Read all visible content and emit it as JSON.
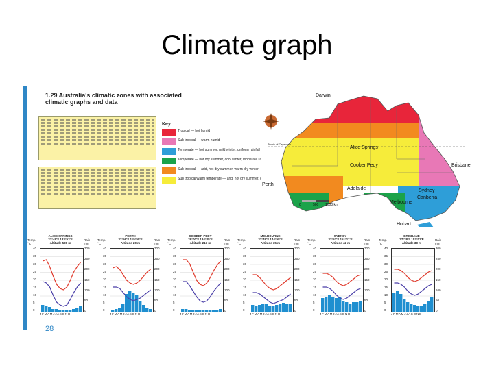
{
  "slide": {
    "title": "Climate graph"
  },
  "figure": {
    "title": "1.29 Australia's climatic zones with associated climatic graphs and data",
    "page_number": "28"
  },
  "key": {
    "title": "Key",
    "items": [
      {
        "label": "Tropical — hot humid",
        "color": "#e8253a"
      },
      {
        "label": "Sub tropical — warm humid",
        "color": "#e878b6"
      },
      {
        "label": "Temperate — hot summer, mild winter; uniform rainfall",
        "color": "#2e9ed8"
      },
      {
        "label": "Temperate — hot dry summer, cool winter, moderate rain",
        "color": "#1ba34a"
      },
      {
        "label": "Sub tropical — arid, hot dry summer, warm dry winter",
        "color": "#f28a1f"
      },
      {
        "label": "Sub tropical/warm temperate — arid, hot dry summer, cool dry winter",
        "color": "#f6ec3a"
      }
    ]
  },
  "map": {
    "labels": {
      "darwin": "Darwin",
      "alice_springs": "Alice Springs",
      "coober_pedy": "Coober Pedy",
      "perth": "Perth",
      "adelaide": "Adelaide",
      "brisbane": "Brisbane",
      "sydney": "Sydney",
      "canberra": "Canberra",
      "melbourne": "Melbourne",
      "hobart": "Hobart",
      "tropic": "Tropic of Capricorn"
    },
    "scale": {
      "zero": "0",
      "mid": "500",
      "end": "1000 km"
    }
  },
  "graphs": [
    {
      "name": "ALICE SPRINGS",
      "coords": "23°48'S 133°53'E",
      "altitude": "Altitude 580 m"
    },
    {
      "name": "PERTH",
      "coords": "31°56'S 115°58'E",
      "altitude": "Altitude 20 m"
    },
    {
      "name": "COOBER PEDY",
      "coords": "29°00'S 134°45'E",
      "altitude": "Altitude 213 m"
    },
    {
      "name": "MELBOURNE",
      "coords": "37°49'S 144°58'E",
      "altitude": "Altitude 35 m"
    },
    {
      "name": "SYDNEY",
      "coords": "33°52'S 151°11'E",
      "altitude": "Altitude 42 m"
    },
    {
      "name": "BRISBANE",
      "coords": "27°28'S 153°02'E",
      "altitude": "Altitude 38 m"
    }
  ],
  "graph_axes": {
    "temp_label": "Temp. °C",
    "rain_label": "Rain mm",
    "temp_ticks": [
      "40",
      "35",
      "30",
      "25",
      "20",
      "15",
      "10",
      "5",
      "0"
    ],
    "rain_ticks": [
      "300",
      "250",
      "200",
      "150",
      "100",
      "50",
      "0"
    ],
    "months": "J F M A M J J A S O N D"
  }
}
